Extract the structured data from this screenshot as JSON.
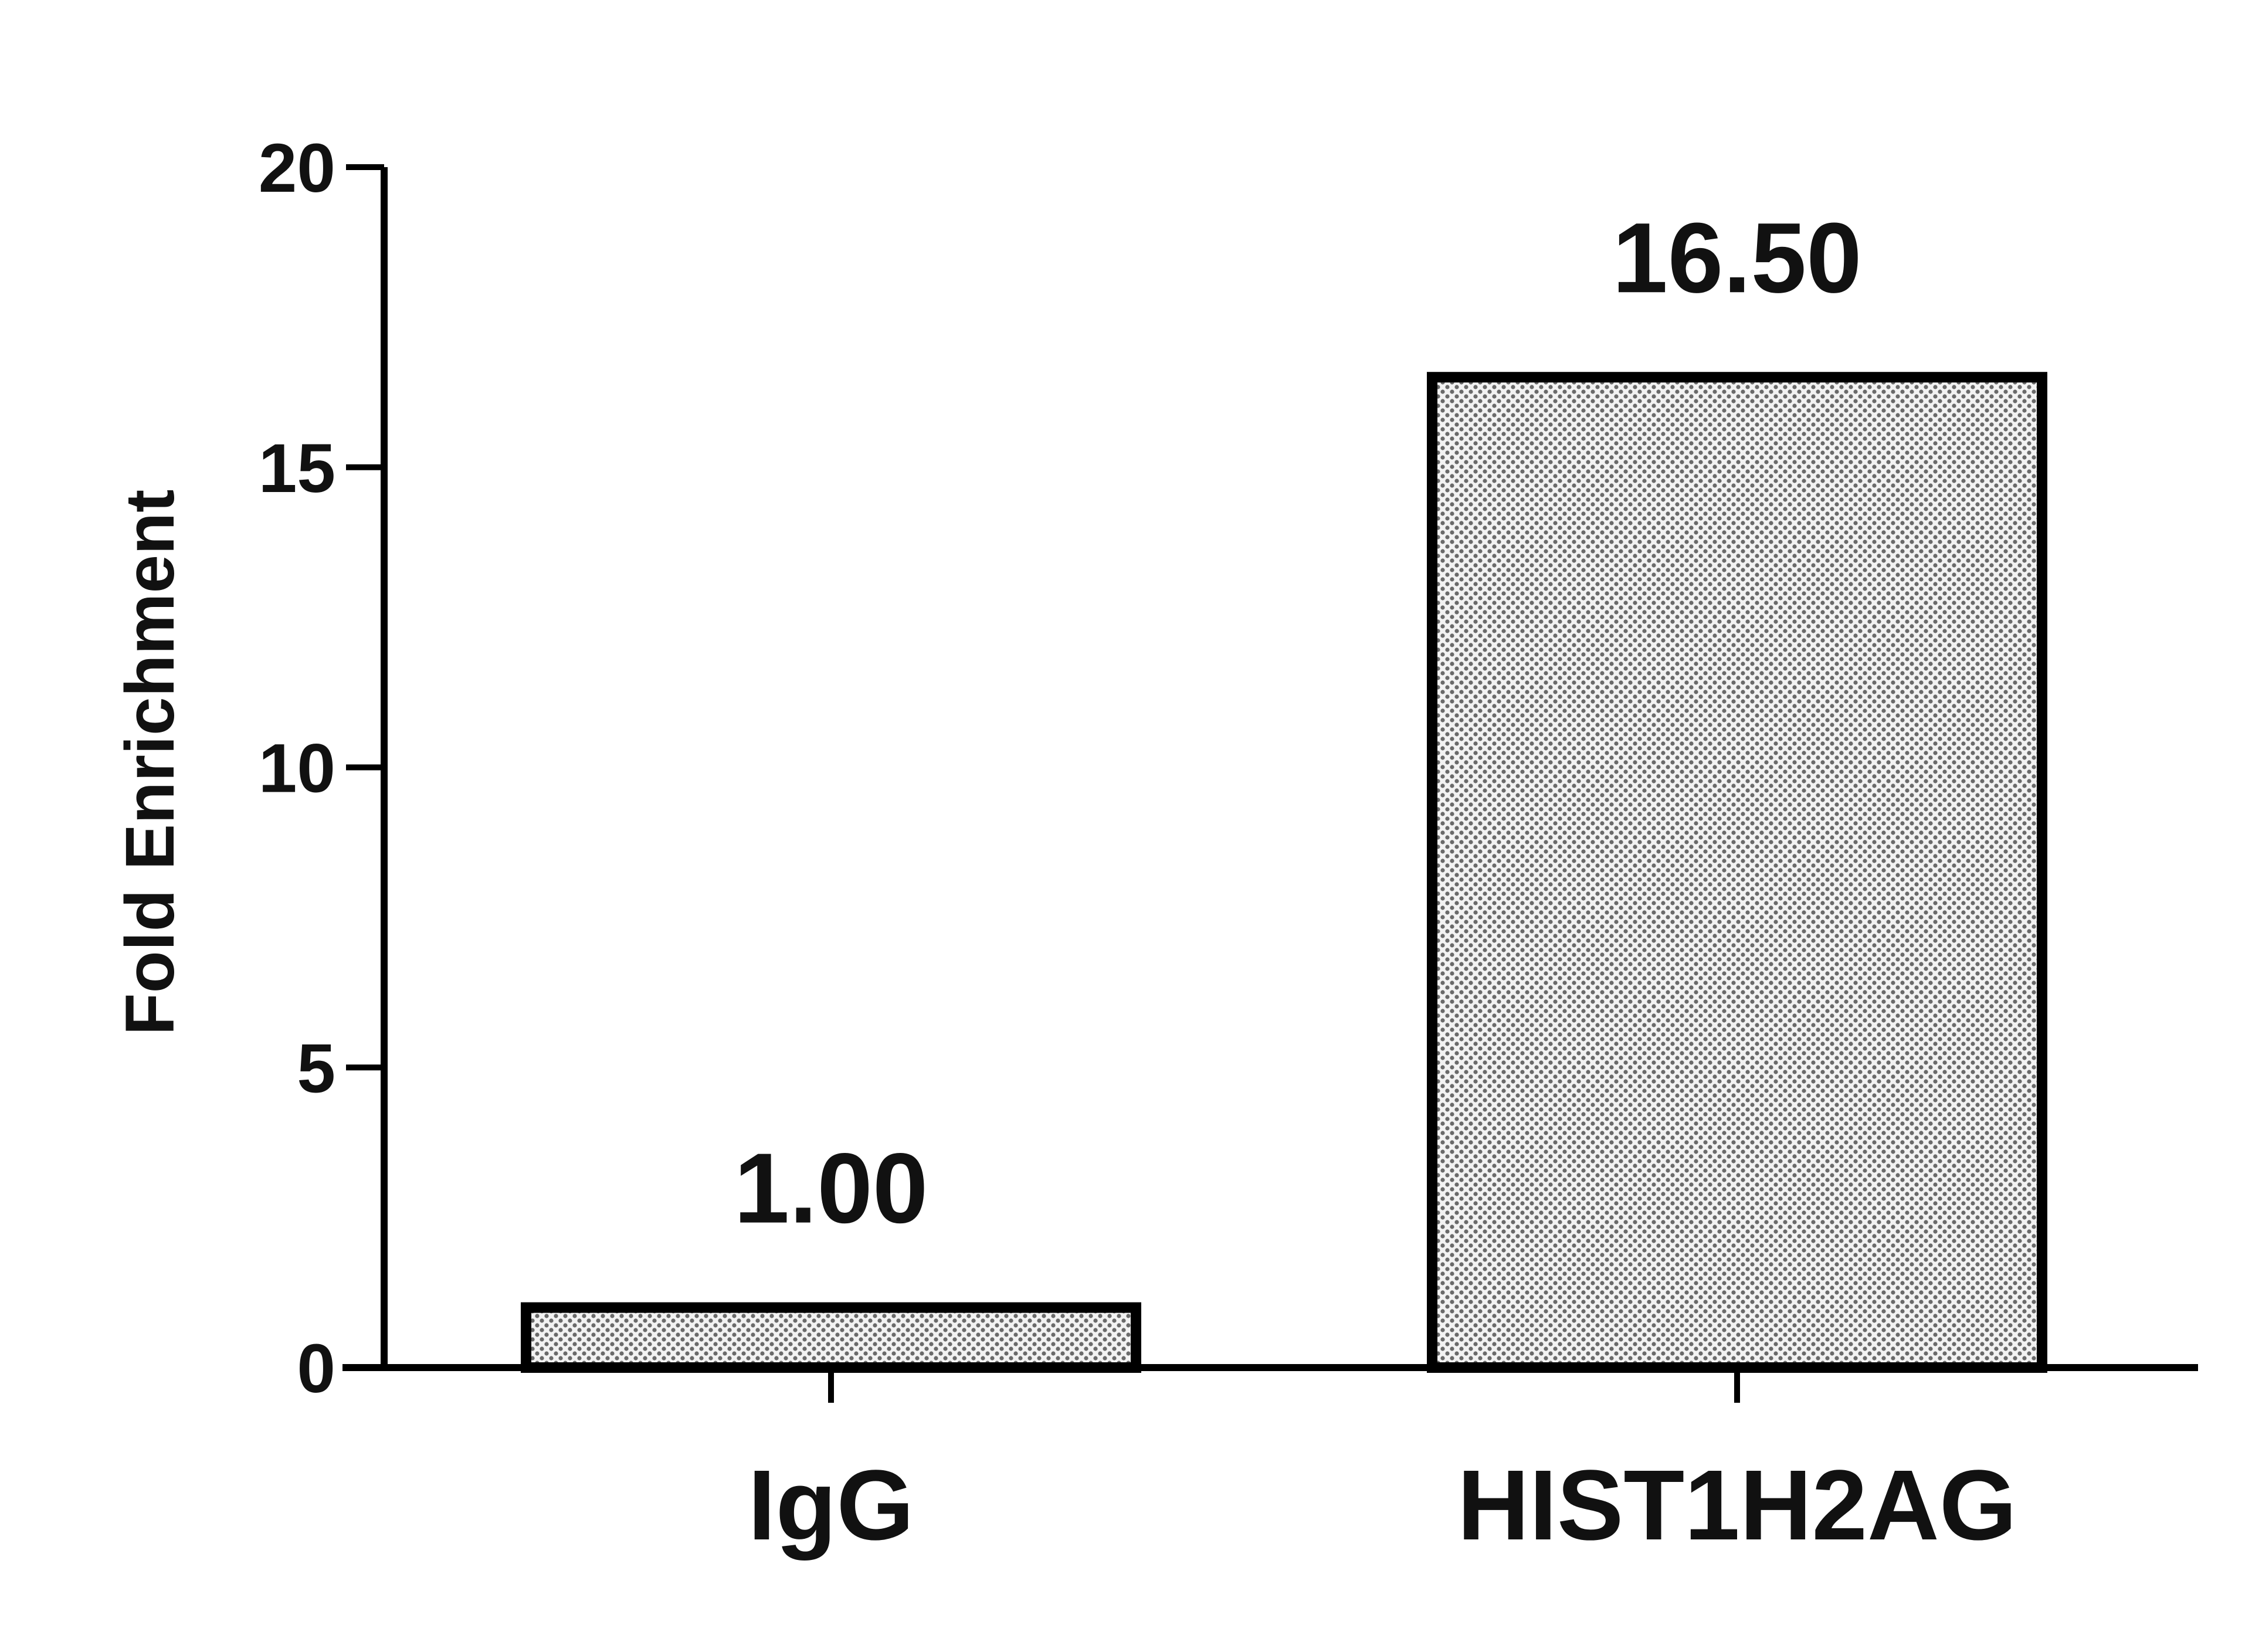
{
  "chart_data": {
    "type": "bar",
    "title": "",
    "xlabel": "",
    "ylabel": "Fold Enrichment",
    "categories": [
      "IgG",
      "HIST1H2AG"
    ],
    "values": [
      1.0,
      16.5
    ],
    "data_labels": [
      "1.00",
      "16.50"
    ],
    "ylim": [
      0,
      20
    ],
    "y_ticks": [
      0,
      5,
      10,
      15,
      20
    ],
    "y_tick_labels": [
      "0",
      "5",
      "10",
      "15",
      "20"
    ],
    "grid": false,
    "legend": "none",
    "bar_fill": "gray dotted pattern",
    "bar_stroke": "#000000"
  }
}
